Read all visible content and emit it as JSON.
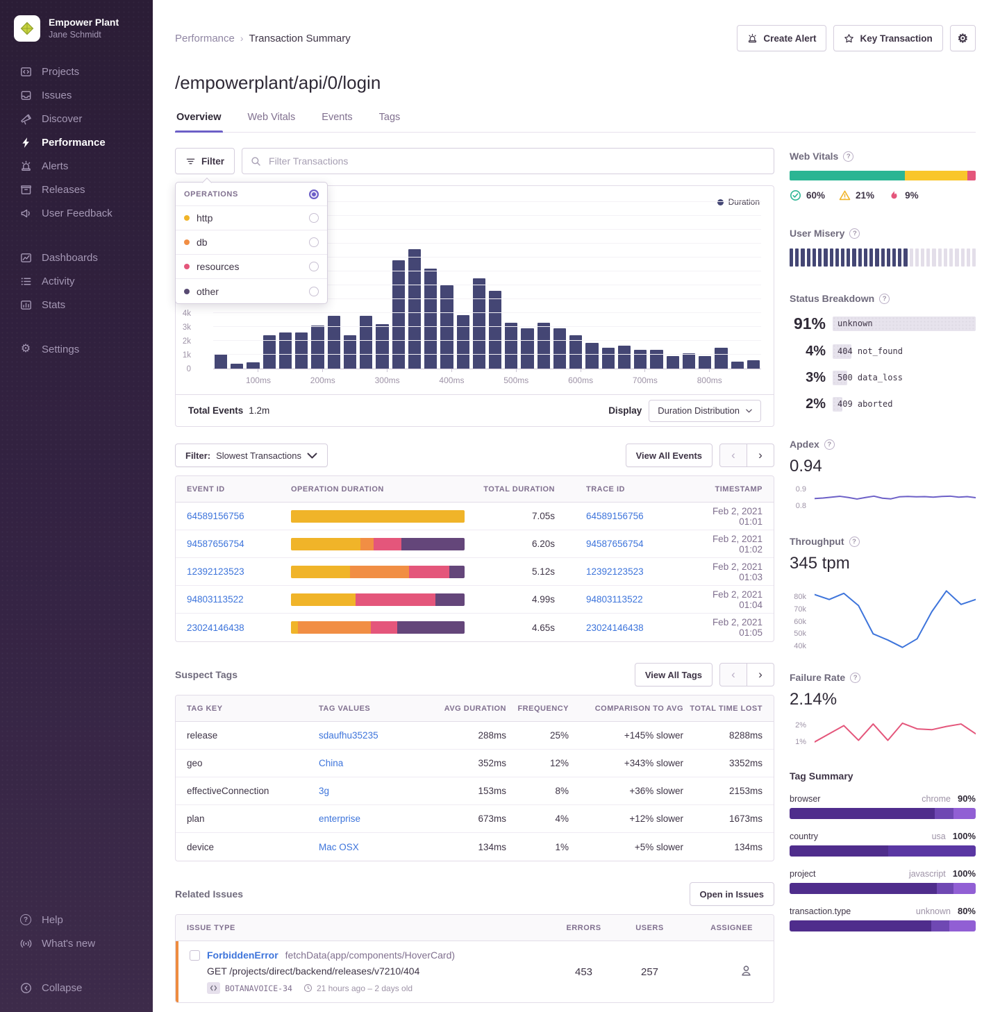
{
  "sidebar": {
    "org_name": "Empower Plant",
    "user_name": "Jane Schmidt",
    "nav": [
      {
        "id": "projects",
        "label": "Projects",
        "icon": "projects-icon"
      },
      {
        "id": "issues",
        "label": "Issues",
        "icon": "issues-icon"
      },
      {
        "id": "discover",
        "label": "Discover",
        "icon": "discover-icon"
      },
      {
        "id": "performance",
        "label": "Performance",
        "icon": "performance-icon",
        "active": true
      },
      {
        "id": "alerts",
        "label": "Alerts",
        "icon": "alerts-icon"
      },
      {
        "id": "releases",
        "label": "Releases",
        "icon": "releases-icon"
      },
      {
        "id": "feedback",
        "label": "User Feedback",
        "icon": "user-feedback-icon"
      },
      {
        "id": "dashboards",
        "label": "Dashboards",
        "icon": "dashboards-icon",
        "gap_before": true
      },
      {
        "id": "activity",
        "label": "Activity",
        "icon": "activity-icon"
      },
      {
        "id": "stats",
        "label": "Stats",
        "icon": "stats-icon"
      },
      {
        "id": "settings",
        "label": "Settings",
        "icon": "settings-icon",
        "gap_before": true
      }
    ],
    "bottom": [
      {
        "id": "help",
        "label": "Help",
        "icon": "help-icon"
      },
      {
        "id": "whats-new",
        "label": "What's new",
        "icon": "broadcast-icon"
      },
      {
        "id": "collapse",
        "label": "Collapse",
        "icon": "collapse-icon",
        "gap_before": true
      }
    ]
  },
  "header": {
    "breadcrumb_parent": "Performance",
    "breadcrumb_current": "Transaction Summary",
    "create_alert": "Create Alert",
    "key_transaction": "Key Transaction",
    "title": "/empowerplant/api/0/login",
    "tabs": [
      {
        "label": "Overview",
        "active": true
      },
      {
        "label": "Web Vitals"
      },
      {
        "label": "Events"
      },
      {
        "label": "Tags"
      }
    ]
  },
  "filterbar": {
    "filter_button": "Filter",
    "search_placeholder": "Filter Transactions",
    "dropdown": {
      "header": "OPERATIONS",
      "options": [
        {
          "label": "http",
          "color": "#F0B429"
        },
        {
          "label": "db",
          "color": "#F18E44"
        },
        {
          "label": "resources",
          "color": "#E4567B"
        },
        {
          "label": "other",
          "color": "#584A72"
        }
      ]
    }
  },
  "chart_data": [
    {
      "id": "duration_histogram",
      "type": "bar",
      "legend_label": "Duration",
      "bar_color": "#444674",
      "x_unit": "ms",
      "bin_start_ms": 40,
      "bin_width_ms": 25,
      "values": [
        1050,
        350,
        450,
        2400,
        2600,
        2600,
        3100,
        3800,
        2400,
        3800,
        3200,
        7800,
        8600,
        7200,
        6000,
        3850,
        6500,
        5600,
        3300,
        2900,
        3300,
        2900,
        2400,
        1850,
        1500,
        1650,
        1350,
        1350,
        900,
        1100,
        900,
        1500,
        500,
        600
      ],
      "yticks": [
        {
          "label": "0",
          "value": 0
        },
        {
          "label": "1k",
          "value": 1000
        },
        {
          "label": "2k",
          "value": 2000
        },
        {
          "label": "3k",
          "value": 3000
        },
        {
          "label": "4k",
          "value": 4000
        }
      ],
      "xticks": [
        {
          "label": "100ms",
          "value": 100
        },
        {
          "label": "200ms",
          "value": 200
        },
        {
          "label": "300ms",
          "value": 300
        },
        {
          "label": "400ms",
          "value": 400
        },
        {
          "label": "500ms",
          "value": 500
        },
        {
          "label": "600ms",
          "value": 600
        },
        {
          "label": "700ms",
          "value": 700
        },
        {
          "label": "800ms",
          "value": 800
        }
      ],
      "ylim": [
        0,
        12500
      ],
      "grid": true,
      "legend_position": "top-right"
    },
    {
      "id": "apdex_trend",
      "type": "line",
      "color": "#6C5FC7",
      "ylim": [
        0.78,
        0.92
      ],
      "yticks": [
        {
          "label": "0.9",
          "value": 0.9
        },
        {
          "label": "0.8",
          "value": 0.8
        }
      ],
      "values": [
        0.845,
        0.848,
        0.853,
        0.858,
        0.851,
        0.842,
        0.851,
        0.859,
        0.847,
        0.843,
        0.855,
        0.857,
        0.855,
        0.856,
        0.853,
        0.857,
        0.859,
        0.853,
        0.856,
        0.85
      ]
    },
    {
      "id": "throughput_trend",
      "type": "line",
      "color": "#3D74DB",
      "ylim": [
        36000,
        88000
      ],
      "yticks": [
        {
          "label": "80k",
          "value": 80000
        },
        {
          "label": "70k",
          "value": 70000
        },
        {
          "label": "60k",
          "value": 60000
        },
        {
          "label": "50k",
          "value": 50000
        },
        {
          "label": "40k",
          "value": 40000
        }
      ],
      "values": [
        82000,
        78000,
        83000,
        73000,
        50000,
        45000,
        39000,
        46000,
        68000,
        85000,
        74000,
        78000
      ]
    },
    {
      "id": "failure_rate_trend",
      "type": "line",
      "color": "#E4567B",
      "ylim": [
        0.7,
        2.4
      ],
      "yticks": [
        {
          "label": "2%",
          "value": 2
        },
        {
          "label": "1%",
          "value": 1
        }
      ],
      "values": [
        1.0,
        1.5,
        2.0,
        1.1,
        2.1,
        1.1,
        2.15,
        1.8,
        1.75,
        1.95,
        2.1,
        1.5
      ]
    }
  ],
  "chart_footer": {
    "total_events_label": "Total Events",
    "total_events_value": "1.2m",
    "display_label": "Display",
    "display_value": "Duration Distribution"
  },
  "events": {
    "filter_label": "Filter:",
    "filter_value": "Slowest Transactions",
    "view_all": "View All Events",
    "columns": [
      "EVENT ID",
      "OPERATION DURATION",
      "TOTAL DURATION",
      "TRACE ID",
      "TIMESTAMP"
    ],
    "rows": [
      {
        "event_id": "64589156756",
        "segments": [
          {
            "color": "#F0B429",
            "pct": 100
          }
        ],
        "total": "7.05s",
        "trace_id": "64589156756",
        "timestamp": "Feb 2, 2021 01:01"
      },
      {
        "event_id": "94587656754",
        "segments": [
          {
            "color": "#F0B429",
            "pct": 40
          },
          {
            "color": "#F18E44",
            "pct": 7.5
          },
          {
            "color": "#E4567B",
            "pct": 16
          },
          {
            "color": "#64467A",
            "pct": 36.5
          }
        ],
        "total": "6.20s",
        "trace_id": "94587656754",
        "timestamp": "Feb 2, 2021 01:02"
      },
      {
        "event_id": "12392123523",
        "segments": [
          {
            "color": "#F0B429",
            "pct": 34
          },
          {
            "color": "#F18E44",
            "pct": 34
          },
          {
            "color": "#E4567B",
            "pct": 23
          },
          {
            "color": "#64467A",
            "pct": 9
          }
        ],
        "total": "5.12s",
        "trace_id": "12392123523",
        "timestamp": "Feb 2, 2021 01:03"
      },
      {
        "event_id": "94803113522",
        "segments": [
          {
            "color": "#F0B429",
            "pct": 37
          },
          {
            "color": "#E4567B",
            "pct": 46
          },
          {
            "color": "#64467A",
            "pct": 17
          }
        ],
        "total": "4.99s",
        "trace_id": "94803113522",
        "timestamp": "Feb 2, 2021 01:04"
      },
      {
        "event_id": "23024146438",
        "segments": [
          {
            "color": "#F0B429",
            "pct": 4
          },
          {
            "color": "#F18E44",
            "pct": 42
          },
          {
            "color": "#E4567B",
            "pct": 15
          },
          {
            "color": "#64467A",
            "pct": 39
          }
        ],
        "total": "4.65s",
        "trace_id": "23024146438",
        "timestamp": "Feb 2, 2021 01:05"
      }
    ]
  },
  "suspect_tags": {
    "title": "Suspect Tags",
    "view_all": "View All Tags",
    "columns": [
      "TAG KEY",
      "TAG VALUES",
      "AVG DURATION",
      "FREQUENCY",
      "COMPARISON TO AVG",
      "TOTAL TIME LOST"
    ],
    "rows": [
      {
        "key": "release",
        "value": "sdaufhu35235",
        "avg": "288ms",
        "freq": "25%",
        "comparison": "+145% slower",
        "lost": "8288ms"
      },
      {
        "key": "geo",
        "value": "China",
        "avg": "352ms",
        "freq": "12%",
        "comparison": "+343% slower",
        "lost": "3352ms"
      },
      {
        "key": "effectiveConnection",
        "value": "3g",
        "avg": "153ms",
        "freq": "8%",
        "comparison": "+36% slower",
        "lost": "2153ms"
      },
      {
        "key": "plan",
        "value": "enterprise",
        "avg": "673ms",
        "freq": "4%",
        "comparison": "+12% slower",
        "lost": "1673ms"
      },
      {
        "key": "device",
        "value": "Mac OSX",
        "avg": "134ms",
        "freq": "1%",
        "comparison": "+5% slower",
        "lost": "134ms"
      }
    ]
  },
  "related_issues": {
    "title": "Related Issues",
    "open_button": "Open in Issues",
    "columns": [
      "ISSUE TYPE",
      "ERRORS",
      "USERS",
      "ASSIGNEE"
    ],
    "row": {
      "error_type": "ForbiddenError",
      "summary": "fetchData(app/components/HoverCard)",
      "detail": "GET /projects/direct/backend/releases/v7210/404",
      "project_badge": "BOTANAVOICE-34",
      "age": "21 hours ago – 2 days old",
      "errors": "453",
      "users": "257"
    }
  },
  "web_vitals": {
    "title": "Web Vitals",
    "segments": [
      {
        "color": "#2BB593",
        "pct": 62
      },
      {
        "color": "#F9C62B",
        "pct": 33.5
      },
      {
        "color": "#E4567B",
        "pct": 4.5,
        "dotted": true
      }
    ],
    "stats": [
      {
        "icon": "check-circle-icon",
        "value": "60%"
      },
      {
        "icon": "warning-triangle-icon",
        "value": "21%"
      },
      {
        "icon": "flame-icon",
        "value": "9%"
      }
    ]
  },
  "user_misery": {
    "title": "User Misery",
    "total_segments": 33,
    "filled_segments": 21,
    "filled_color": "#444674",
    "empty_color": "#E3DEE9"
  },
  "status_breakdown": {
    "title": "Status Breakdown",
    "rows": [
      {
        "pct": "91%",
        "label": "unknown",
        "bar_pct": 100
      },
      {
        "pct": "4%",
        "label": "404 not_found",
        "bar_pct": 13
      },
      {
        "pct": "3%",
        "label": "500 data_loss",
        "bar_pct": 10
      },
      {
        "pct": "2%",
        "label": "409 aborted",
        "bar_pct": 7
      }
    ]
  },
  "apdex": {
    "title": "Apdex",
    "value": "0.94"
  },
  "throughput": {
    "title": "Throughput",
    "value": "345 tpm"
  },
  "failure_rate": {
    "title": "Failure Rate",
    "value": "2.14%"
  },
  "tag_summary": {
    "title": "Tag Summary",
    "rows": [
      {
        "key": "browser",
        "value": "chrome",
        "pct": "90%",
        "segments": [
          {
            "color": "#4F2D8C",
            "pct": 78
          },
          {
            "color": "#6F48B3",
            "pct": 10
          },
          {
            "color": "#915FD4",
            "pct": 12
          }
        ]
      },
      {
        "key": "country",
        "value": "usa",
        "pct": "100%",
        "segments": [
          {
            "color": "#4F2D8C",
            "pct": 53
          },
          {
            "color": "#5A37A3",
            "pct": 47
          }
        ]
      },
      {
        "key": "project",
        "value": "javascript",
        "pct": "100%",
        "segments": [
          {
            "color": "#4F2D8C",
            "pct": 79,
            "dotted": true
          },
          {
            "color": "#6F48B3",
            "pct": 9
          },
          {
            "color": "#915FD4",
            "pct": 12
          }
        ]
      },
      {
        "key": "transaction.type",
        "value": "unknown",
        "pct": "80%",
        "segments": [
          {
            "color": "#4F2D8C",
            "pct": 76,
            "dotted": true
          },
          {
            "color": "#6F48B3",
            "pct": 10
          },
          {
            "color": "#915FD4",
            "pct": 14
          }
        ]
      }
    ]
  }
}
